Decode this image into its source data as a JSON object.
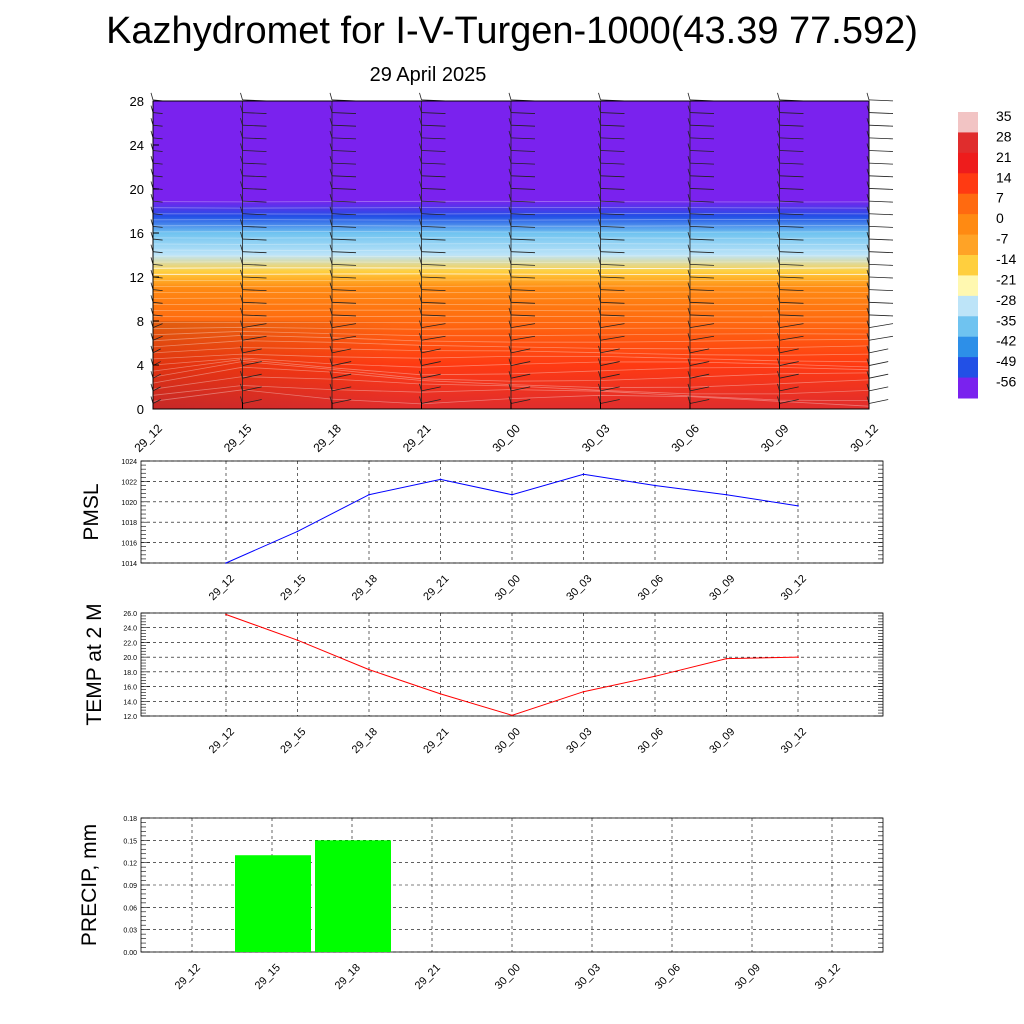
{
  "title": "Kazhydromet for I-V-Turgen-1000(43.39 77.592)",
  "subtitle": "29 April 2025",
  "colorbar": {
    "labels": [
      "35",
      "28",
      "21",
      "14",
      "7",
      "0",
      "-7",
      "-14",
      "-21",
      "-28",
      "-35",
      "-42",
      "-49",
      "-56"
    ],
    "colors": [
      "#f2c4c4",
      "#e02d2d",
      "#ee1c1c",
      "#ff3a12",
      "#ff6a10",
      "#ff8a12",
      "#ffa326",
      "#ffcf3e",
      "#fff8b0",
      "#bde4f8",
      "#6fc3f0",
      "#2d8fe8",
      "#2250e6",
      "#7a22ee"
    ]
  },
  "chart_data": [
    {
      "type": "heatmap",
      "name": "cross-section",
      "x_ticks": [
        "29_12",
        "29_15",
        "29_18",
        "29_21",
        "30_00",
        "30_03",
        "30_06",
        "30_09",
        "30_12"
      ],
      "y_ticks": [
        "0",
        "4",
        "8",
        "12",
        "16",
        "20",
        "24",
        "28"
      ],
      "ylim": [
        0,
        28
      ],
      "vertical_profile": [
        {
          "y": 0,
          "value": 25
        },
        {
          "y": 4,
          "value": 14
        },
        {
          "y": 8,
          "value": 6
        },
        {
          "y": 11,
          "value": 0
        },
        {
          "y": 12.5,
          "value": -12
        },
        {
          "y": 14,
          "value": -25
        },
        {
          "y": 16,
          "value": -38
        },
        {
          "y": 17.5,
          "value": -50
        },
        {
          "y": 19,
          "value": -56
        },
        {
          "y": 28,
          "value": -56
        }
      ]
    },
    {
      "type": "line",
      "ylabel": "PMSL",
      "categories": [
        "29_12",
        "29_15",
        "29_18",
        "29_21",
        "30_00",
        "30_03",
        "30_06",
        "30_09",
        "30_12"
      ],
      "y_ticks": [
        "1014",
        "1016",
        "1018",
        "1020",
        "1022",
        "1024"
      ],
      "ylim": [
        1014,
        1024
      ],
      "series": [
        {
          "values": [
            1014.0,
            1017.1,
            1020.7,
            1022.2,
            1020.7,
            1022.7,
            1021.6,
            1020.7,
            1019.6
          ],
          "color": "#0000ff"
        }
      ],
      "grid": true
    },
    {
      "type": "line",
      "ylabel": "TEMP at 2 M",
      "categories": [
        "29_12",
        "29_15",
        "29_18",
        "29_21",
        "30_00",
        "30_03",
        "30_06",
        "30_09",
        "30_12"
      ],
      "y_ticks": [
        "12.0",
        "14.0",
        "16.0",
        "18.0",
        "20.0",
        "22.0",
        "24.0",
        "26.0"
      ],
      "ylim": [
        12,
        26
      ],
      "series": [
        {
          "values": [
            25.8,
            22.3,
            18.3,
            15.0,
            12.1,
            15.3,
            17.4,
            19.8,
            20.0
          ],
          "color": "#ff0000"
        }
      ],
      "grid": true
    },
    {
      "type": "bar",
      "ylabel": "PRECIP, mm",
      "categories": [
        "29_12",
        "29_15",
        "29_18",
        "29_21",
        "30_00",
        "30_03",
        "30_06",
        "30_09",
        "30_12"
      ],
      "y_ticks": [
        "0.00",
        "0.03",
        "0.06",
        "0.09",
        "0.12",
        "0.15",
        "0.18"
      ],
      "ylim": [
        0,
        0.18
      ],
      "values": [
        0,
        0.13,
        0.15,
        0,
        0,
        0,
        0,
        0,
        0
      ],
      "color": "#00ff00",
      "grid": true
    }
  ]
}
